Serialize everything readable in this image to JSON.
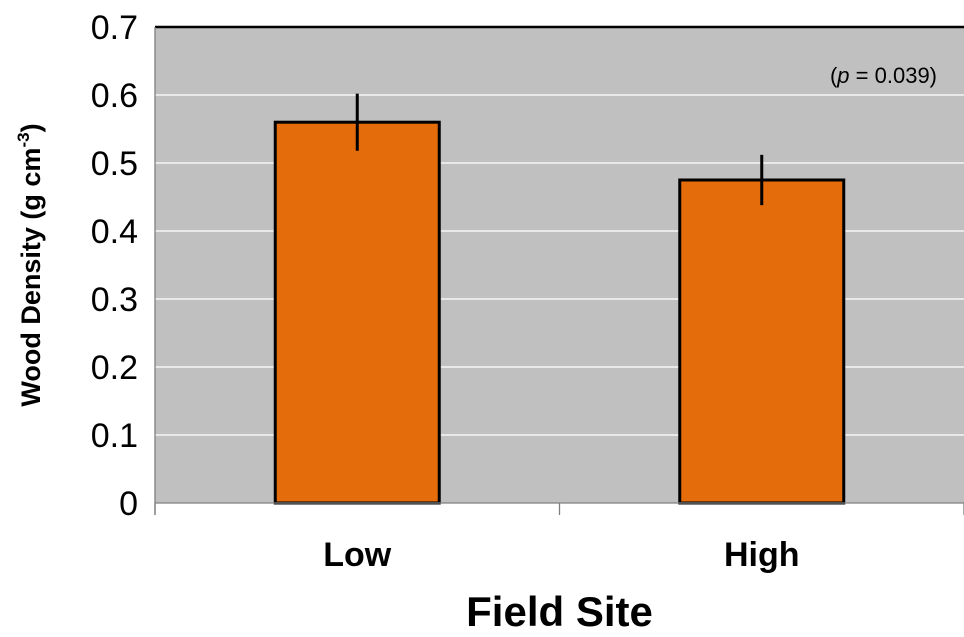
{
  "colors": {
    "plot_background": "#c0c0c0",
    "bar_fill": "#e46c0a",
    "bar_stroke": "#000000",
    "gridline": "#ffffff"
  },
  "chart_data": {
    "type": "bar",
    "categories": [
      "Low",
      "High"
    ],
    "values": [
      0.56,
      0.475
    ],
    "error": [
      0.042,
      0.037
    ],
    "xlabel": "Field Site",
    "ylabel": {
      "main": "Wood Density (g cm",
      "superscript": "-3",
      "close": ")"
    },
    "ylim": [
      0,
      0.7
    ],
    "yticks": [
      "0",
      "0.1",
      "0.2",
      "0.3",
      "0.4",
      "0.5",
      "0.6",
      "0.7"
    ],
    "annotation": {
      "open": "(",
      "italic": "p",
      "rest": " = 0.039)"
    },
    "grid": true,
    "legend": "none"
  }
}
